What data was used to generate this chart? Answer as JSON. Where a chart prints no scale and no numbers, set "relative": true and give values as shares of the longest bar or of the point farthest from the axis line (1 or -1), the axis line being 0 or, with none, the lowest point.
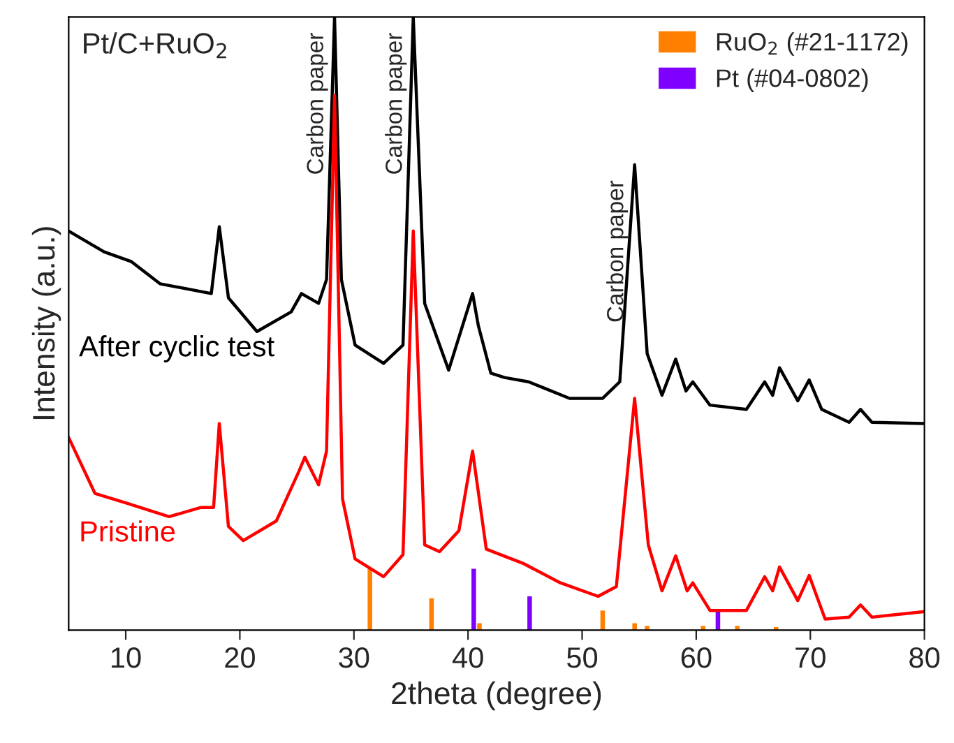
{
  "chart_data": {
    "type": "line",
    "title": "Pt/C+RuO$_{2}$",
    "xlabel": "2theta (degree)",
    "ylabel": "Intensity (a.u.)",
    "relative": true,
    "xlim": [
      5,
      80
    ],
    "xticks": [
      10,
      20,
      30,
      40,
      50,
      60,
      70,
      80
    ],
    "grid": false,
    "legend": "top right",
    "marker": "none",
    "line_style": "solid",
    "annotations": [
      {
        "text": "Carbon paper",
        "x": 28.3,
        "y": 1.0
      },
      {
        "text": "Carbon paper",
        "x": 35.2,
        "y": 1.0
      },
      {
        "text": "Carbon paper",
        "x": 54.6,
        "y": 0.759
      }
    ],
    "series": [
      {
        "name": "After cyclic test",
        "color": "#000000",
        "x": [
          5,
          8.1,
          10.5,
          13,
          17.5,
          18.2,
          19,
          21.5,
          24.5,
          25.4,
          26.9,
          27.6,
          28.3,
          28.9,
          30.1,
          32.6,
          34.3,
          35.2,
          36.2,
          38.3,
          40.4,
          40.9,
          42.0,
          43.2,
          45.3,
          46.5,
          48.9,
          51.8,
          53.3,
          54.6,
          55.7,
          57.0,
          58.2,
          59.1,
          59.7,
          61.2,
          64.4,
          66.0,
          66.7,
          67.3,
          68.9,
          69.9,
          71.0,
          73.4,
          74.4,
          75.4,
          79.9
        ],
        "values": [
          0.651,
          0.617,
          0.601,
          0.565,
          0.549,
          0.658,
          0.542,
          0.487,
          0.519,
          0.549,
          0.533,
          0.572,
          1.0,
          0.572,
          0.465,
          0.435,
          0.465,
          1.0,
          0.533,
          0.424,
          0.549,
          0.497,
          0.419,
          0.412,
          0.405,
          0.396,
          0.378,
          0.378,
          0.405,
          0.759,
          0.451,
          0.383,
          0.442,
          0.39,
          0.405,
          0.367,
          0.36,
          0.405,
          0.383,
          0.428,
          0.374,
          0.408,
          0.36,
          0.339,
          0.36,
          0.339,
          0.337
        ]
      },
      {
        "name": "Pristine",
        "color": "#ff0000",
        "x": [
          5,
          7.3,
          10.1,
          13.8,
          16.6,
          17.7,
          18.2,
          19,
          20.3,
          23.2,
          25.2,
          25.7,
          26.9,
          27.6,
          28.3,
          29.0,
          30.1,
          32.6,
          34.3,
          35.2,
          36.2,
          37.5,
          39.2,
          40.4,
          41.6,
          44.8,
          48.1,
          51.4,
          53.0,
          54.6,
          55.8,
          57.0,
          58.2,
          59.2,
          59.7,
          61.2,
          64.4,
          66.0,
          66.7,
          67.3,
          68.9,
          69.9,
          71.3,
          73.4,
          74.4,
          75.4,
          79.9
        ],
        "values": [
          0.314,
          0.223,
          0.207,
          0.185,
          0.2,
          0.2,
          0.337,
          0.169,
          0.146,
          0.178,
          0.26,
          0.282,
          0.237,
          0.292,
          0.872,
          0.214,
          0.116,
          0.087,
          0.123,
          0.651,
          0.139,
          0.128,
          0.162,
          0.292,
          0.132,
          0.109,
          0.077,
          0.055,
          0.071,
          0.378,
          0.139,
          0.064,
          0.121,
          0.064,
          0.077,
          0.032,
          0.032,
          0.087,
          0.064,
          0.103,
          0.048,
          0.089,
          0.018,
          0.021,
          0.041,
          0.021,
          0.03
        ]
      },
      {
        "name": "RuO$_{2}$ (#21-1172)",
        "type": "bar",
        "color": "#ff8000",
        "x": [
          31.4,
          36.8,
          41.0,
          51.8,
          54.6,
          55.7,
          60.6,
          63.6,
          67.0
        ],
        "values": [
          0.1,
          0.052,
          0.011,
          0.032,
          0.011,
          0.007,
          0.007,
          0.007,
          0.005
        ]
      },
      {
        "name": "Pt (#04-0802)",
        "type": "bar",
        "color": "#8000ff",
        "x": [
          40.5,
          45.4,
          61.9
        ],
        "values": [
          0.1,
          0.055,
          0.032
        ]
      }
    ]
  }
}
